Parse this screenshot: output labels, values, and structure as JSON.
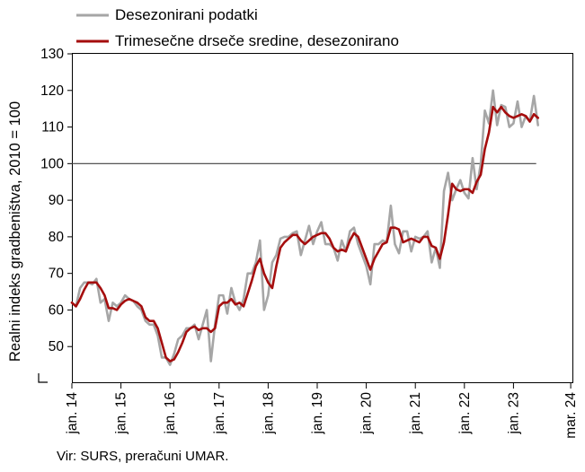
{
  "chart_data": {
    "type": "line",
    "title": "",
    "xlabel": "",
    "ylabel": "Realni indeks gradbeništva, 2010 = 100",
    "ylim": [
      40,
      130
    ],
    "y_ticks": [
      130,
      120,
      110,
      100,
      90,
      80,
      70,
      60,
      50
    ],
    "x_tick_labels": [
      "jan. 14",
      "jan. 15",
      "jan. 16",
      "jan. 17",
      "jan. 18",
      "jan. 19",
      "jan. 20",
      "jan. 21",
      "jan. 22",
      "jan. 23",
      "mar. 24"
    ],
    "reference_line": 100,
    "legend_position": "top",
    "grid": false,
    "source": "Vir: SURS, preračuni UMAR.",
    "colors": {
      "monthly": "#a6a6a6",
      "moving_avg": "#a50d0d",
      "reference": "#404040"
    },
    "series": [
      {
        "name": "Desezonirani podatki",
        "start": "2014-01",
        "frequency": "monthly",
        "values": [
          62,
          61,
          66,
          67.5,
          67.5,
          67,
          68.5,
          62,
          63,
          57,
          62,
          61,
          62,
          64,
          63,
          62.5,
          61,
          60,
          57,
          56,
          56,
          53,
          47,
          47,
          45,
          48,
          52,
          53,
          55,
          55,
          56,
          52,
          56,
          60,
          46,
          56,
          64,
          64,
          59,
          66,
          62,
          60,
          63,
          70,
          70,
          73,
          79,
          60,
          64,
          73,
          75,
          79.5,
          80,
          80,
          81,
          81.5,
          75,
          79,
          83,
          78,
          81.5,
          84,
          78,
          78,
          77,
          73.5,
          79,
          76,
          81.5,
          82.5,
          78,
          75,
          72,
          67,
          78,
          78,
          79,
          78.5,
          88.5,
          78,
          75.5,
          81.5,
          81.5,
          76,
          80,
          79.5,
          80,
          81.5,
          73,
          77,
          71.5,
          92.5,
          97.5,
          90,
          93,
          95.5,
          92,
          90.5,
          101.5,
          93,
          100,
          114.5,
          111,
          120,
          110.5,
          116,
          115.5,
          110,
          111,
          117,
          110,
          113,
          111.5,
          118.5,
          110.5
        ]
      },
      {
        "name": "Trimesečne drseče sredine, desezonirano",
        "start": "2014-01",
        "frequency": "monthly",
        "values": [
          62,
          61,
          63,
          65.5,
          67.5,
          67.5,
          67.5,
          66,
          64,
          60.5,
          60.5,
          60,
          61.5,
          62.5,
          63,
          62.5,
          62,
          61,
          58,
          57,
          57,
          55,
          51,
          47,
          46,
          46.5,
          48.5,
          51,
          54,
          55,
          55.5,
          54.5,
          55,
          55,
          54,
          55,
          61,
          62,
          62,
          63,
          61.5,
          62,
          61,
          64.5,
          68,
          72,
          74,
          70,
          67.5,
          66,
          72,
          77,
          78.5,
          79.5,
          80.5,
          80.5,
          79,
          78,
          79,
          80,
          80.5,
          81,
          81,
          79.5,
          77,
          76,
          76.5,
          76,
          79,
          81,
          80,
          77,
          74,
          71,
          74,
          76,
          78,
          78.5,
          82.5,
          82.5,
          82,
          78.5,
          79,
          79.5,
          79,
          78.5,
          80,
          80,
          77.5,
          77,
          74,
          78.5,
          86,
          94.5,
          93,
          92.5,
          93,
          93,
          92,
          95,
          97,
          104,
          108.5,
          115.5,
          114,
          115.5,
          114,
          113,
          112.5,
          113,
          113.5,
          113,
          111.5,
          113.5,
          112.5
        ]
      }
    ]
  }
}
